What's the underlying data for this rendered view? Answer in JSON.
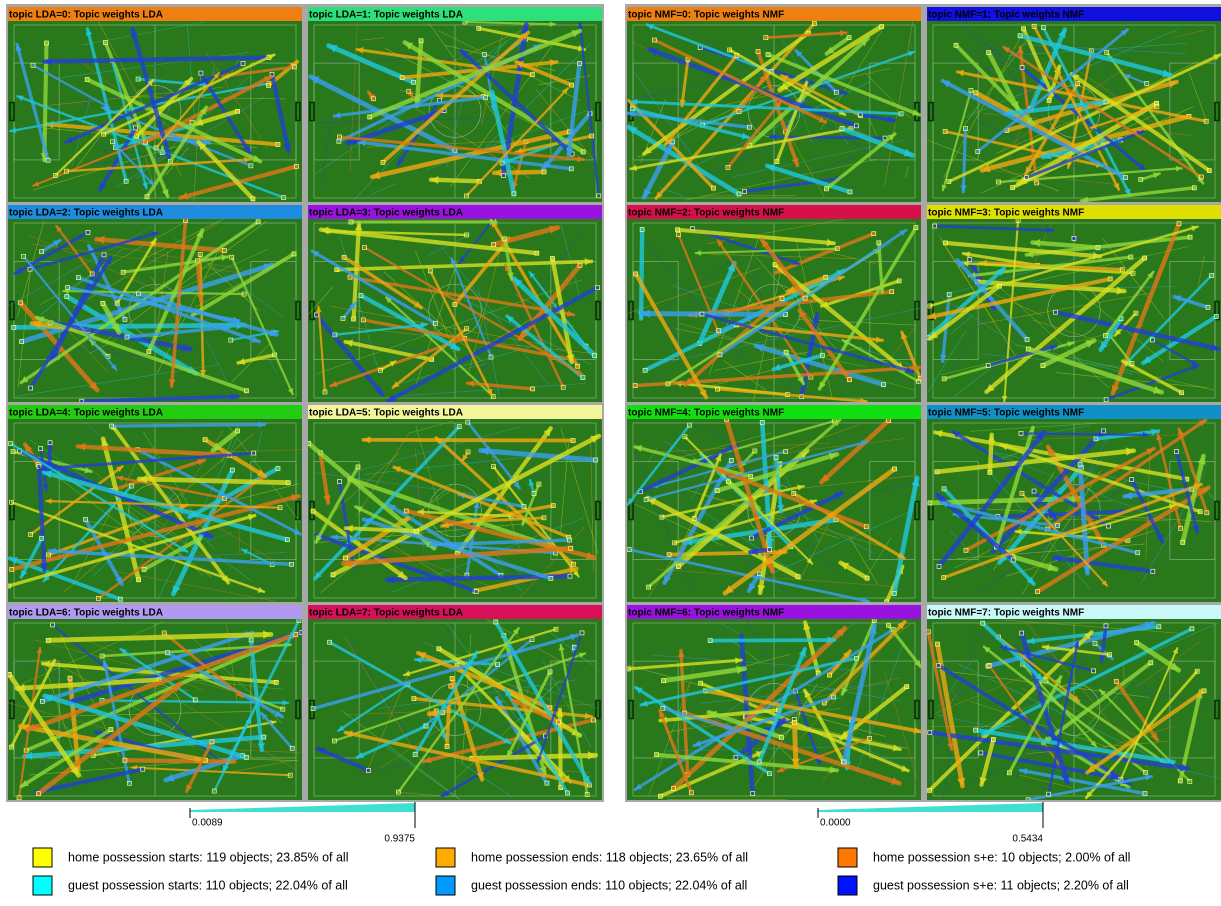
{
  "panel_groups": [
    {
      "panels": [
        {
          "title": "topic LDA=0: Topic weights LDA",
          "color": "#f07f12"
        },
        {
          "title": "topic LDA=1: Topic weights LDA",
          "color": "#2de07a"
        },
        {
          "title": "topic LDA=2: Topic weights LDA",
          "color": "#1e8de0"
        },
        {
          "title": "topic LDA=3: Topic weights LDA",
          "color": "#9a12e0"
        },
        {
          "title": "topic LDA=4: Topic weights LDA",
          "color": "#22cc11"
        },
        {
          "title": "topic LDA=5: Topic weights LDA",
          "color": "#f4f49a"
        },
        {
          "title": "topic LDA=6: Topic weights LDA",
          "color": "#b09af0"
        },
        {
          "title": "topic LDA=7: Topic weights LDA",
          "color": "#d8105a"
        }
      ],
      "scale": {
        "min_label": "0.0089",
        "max_label": "0.9375"
      }
    },
    {
      "panels": [
        {
          "title": "topic NMF=0: Topic weights NMF",
          "color": "#f07f12"
        },
        {
          "title": "topic NMF=1: Topic weights NMF",
          "color": "#1010e0"
        },
        {
          "title": "topic NMF=2: Topic weights NMF",
          "color": "#d8104a"
        },
        {
          "title": "topic NMF=3: Topic weights NMF",
          "color": "#e0e000"
        },
        {
          "title": "topic NMF=4: Topic weights NMF",
          "color": "#10e010"
        },
        {
          "title": "topic NMF=5: Topic weights NMF",
          "color": "#1090c8"
        },
        {
          "title": "topic NMF=6: Topic weights NMF",
          "color": "#9a12e0"
        },
        {
          "title": "topic NMF=7: Topic weights NMF",
          "color": "#c8f8f8"
        }
      ],
      "scale": {
        "min_label": "0.0000",
        "max_label": "0.5434"
      }
    }
  ],
  "legend": [
    {
      "label": "home possession starts: 119 objects; 23.85% of all",
      "color": "#ffff00"
    },
    {
      "label": "home possession ends: 118 objects; 23.65% of all",
      "color": "#ffaa00"
    },
    {
      "label": "home possession s+e: 10 objects; 2.00% of all",
      "color": "#ff7700"
    },
    {
      "label": "guest possession starts: 110 objects; 22.04% of all",
      "color": "#00ffff"
    },
    {
      "label": "guest possession ends: 110 objects; 22.04% of all",
      "color": "#0099ff"
    },
    {
      "label": "guest possession s+e: 11 objects; 2.20% of all",
      "color": "#0011ff"
    }
  ]
}
